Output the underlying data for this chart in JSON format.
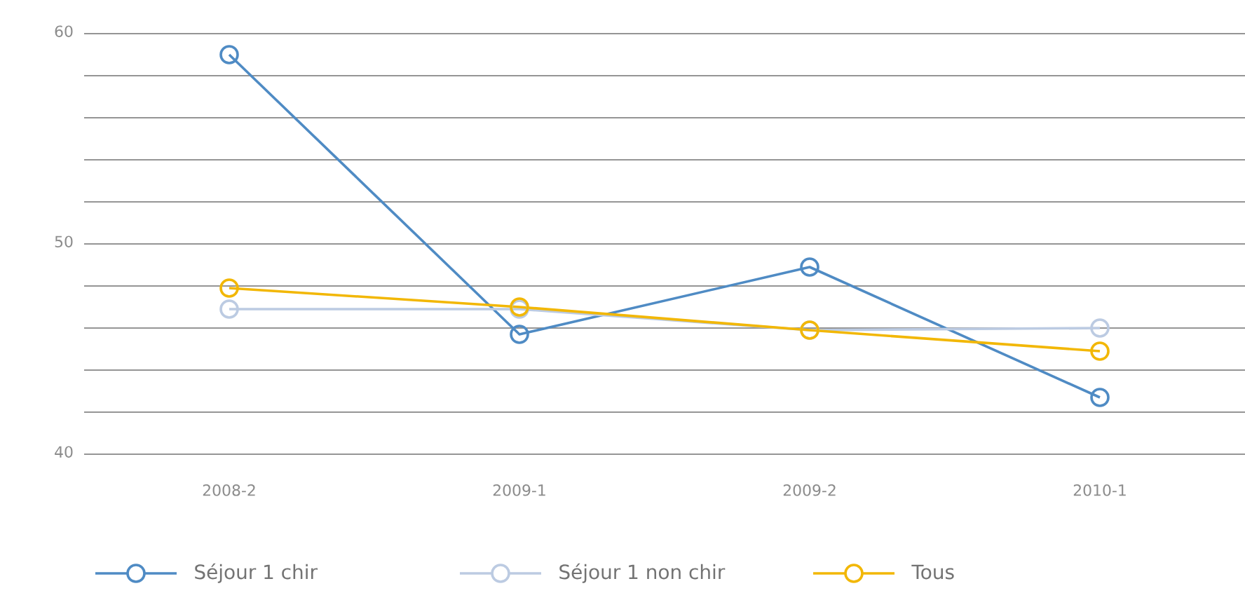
{
  "chart_data": {
    "type": "line",
    "categories": [
      "2008-2",
      "2009-1",
      "2009-2",
      "2010-1"
    ],
    "series": [
      {
        "name": "Séjour 1 chir",
        "color": "#4f8bc4",
        "values": [
          59,
          45.7,
          48.9,
          42.7
        ]
      },
      {
        "name": "Séjour 1 non chir",
        "color": "#bccbe2",
        "values": [
          46.9,
          46.9,
          45.9,
          46
        ]
      },
      {
        "name": "Tous",
        "color": "#f2b705",
        "values": [
          47.9,
          47,
          45.9,
          44.9
        ]
      }
    ],
    "ylim": [
      40,
      60
    ],
    "yticks": [
      40,
      {
        "value": 42,
        "label": null
      },
      {
        "value": 44,
        "label": null
      },
      {
        "value": 46,
        "label": null
      },
      {
        "value": 48,
        "label": null
      },
      50,
      {
        "value": 52,
        "label": null
      },
      {
        "value": 54,
        "label": null
      },
      {
        "value": 56,
        "label": null
      },
      {
        "value": 58,
        "label": null
      },
      60
    ],
    "grid": "y",
    "legend": "bottom",
    "marker": "circle",
    "line_style": "solid"
  }
}
